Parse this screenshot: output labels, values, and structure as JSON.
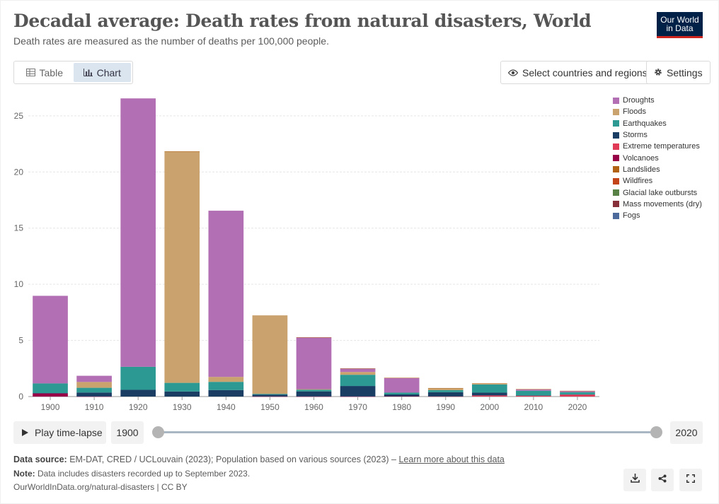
{
  "header": {
    "title": "Decadal average: Death rates from natural disasters, World",
    "subtitle": "Death rates are measured as the number of deaths per 100,000 people.",
    "logo_line1": "Our World",
    "logo_line2": "in Data"
  },
  "tabs": [
    {
      "label": "Table",
      "icon": "table-icon",
      "active": false
    },
    {
      "label": "Chart",
      "icon": "chart-icon",
      "active": true
    }
  ],
  "controls": {
    "select_label": "Select countries and regions",
    "settings_label": "Settings"
  },
  "timeline": {
    "play_label": "Play time-lapse",
    "start_year": "1900",
    "end_year": "2020"
  },
  "footer": {
    "source_prefix": "Data source:",
    "source_text": " EM-DAT, CRED / UCLouvain (2023); Population based on various sources (2023) – ",
    "learn_more": "Learn more about this data",
    "note_prefix": "Note:",
    "note_text": " Data includes disasters recorded up to September 2023.",
    "url_text": "OurWorldInData.org/natural-disasters | CC BY"
  },
  "chart_data": {
    "type": "bar",
    "stacked": true,
    "title": "Decadal average: Death rates from natural disasters, World",
    "xlabel": "",
    "ylabel": "",
    "ylim": [
      0,
      26.5
    ],
    "yticks": [
      0,
      5,
      10,
      15,
      20,
      25
    ],
    "grid": true,
    "legend_position": "right",
    "categories": [
      "1900",
      "1910",
      "1920",
      "1930",
      "1940",
      "1950",
      "1960",
      "1970",
      "1980",
      "1990",
      "2000",
      "2010",
      "2020"
    ],
    "series": [
      {
        "name": "Volcanoes",
        "color": "#970046",
        "values": [
          0.28,
          0.01,
          0.0,
          0.0,
          0.0,
          0.01,
          0.01,
          0.01,
          0.03,
          0.0,
          0.0,
          0.0,
          0.0
        ]
      },
      {
        "name": "Mass movements (dry)",
        "color": "#883039",
        "values": [
          0.0,
          0.0,
          0.0,
          0.0,
          0.0,
          0.0,
          0.0,
          0.0,
          0.0,
          0.0,
          0.0,
          0.0,
          0.0
        ]
      },
      {
        "name": "Extreme temperatures",
        "color": "#e03a57",
        "values": [
          0.0,
          0.0,
          0.0,
          0.0,
          0.0,
          0.0,
          0.0,
          0.0,
          0.0,
          0.01,
          0.1,
          0.07,
          0.17
        ]
      },
      {
        "name": "Storms",
        "color": "#1a3d63",
        "values": [
          0.03,
          0.35,
          0.6,
          0.45,
          0.58,
          0.17,
          0.45,
          0.93,
          0.16,
          0.38,
          0.25,
          0.03,
          0.03
        ]
      },
      {
        "name": "Earthquakes",
        "color": "#2c9a93",
        "values": [
          0.86,
          0.42,
          2.05,
          0.77,
          0.73,
          0.06,
          0.15,
          1.0,
          0.16,
          0.18,
          0.73,
          0.42,
          0.19
        ]
      },
      {
        "name": "Floods",
        "color": "#c9a26d",
        "values": [
          0.0,
          0.52,
          0.0,
          20.6,
          0.44,
          6.99,
          0.05,
          0.25,
          0.0,
          0.17,
          0.08,
          0.0,
          0.0
        ]
      },
      {
        "name": "Droughts",
        "color": "#b26fb3",
        "values": [
          7.8,
          0.55,
          23.9,
          0.0,
          14.8,
          0.0,
          4.6,
          0.3,
          1.3,
          0.0,
          0.0,
          0.12,
          0.1
        ]
      },
      {
        "name": "Landslides",
        "color": "#b16214",
        "values": [
          0.0,
          0.0,
          0.0,
          0.02,
          0.0,
          0.0,
          0.02,
          0.02,
          0.02,
          0.02,
          0.02,
          0.02,
          0.02
        ]
      },
      {
        "name": "Wildfires",
        "color": "#c4441a",
        "values": [
          0.0,
          0.0,
          0.0,
          0.0,
          0.0,
          0.0,
          0.0,
          0.0,
          0.0,
          0.0,
          0.0,
          0.0,
          0.0
        ]
      },
      {
        "name": "Glacial lake outbursts",
        "color": "#578145",
        "values": [
          0.0,
          0.0,
          0.0,
          0.0,
          0.0,
          0.0,
          0.0,
          0.0,
          0.0,
          0.0,
          0.0,
          0.0,
          0.0
        ]
      },
      {
        "name": "Fogs",
        "color": "#4c6a9c",
        "values": [
          0.0,
          0.0,
          0.0,
          0.0,
          0.0,
          0.0,
          0.0,
          0.0,
          0.0,
          0.0,
          0.0,
          0.0,
          0.0
        ]
      }
    ],
    "legend": [
      {
        "name": "Droughts",
        "color": "#b26fb3"
      },
      {
        "name": "Floods",
        "color": "#c9a26d"
      },
      {
        "name": "Earthquakes",
        "color": "#2c9a93"
      },
      {
        "name": "Storms",
        "color": "#1a3d63"
      },
      {
        "name": "Extreme temperatures",
        "color": "#e03a57"
      },
      {
        "name": "Volcanoes",
        "color": "#970046"
      },
      {
        "name": "Landslides",
        "color": "#b16214"
      },
      {
        "name": "Wildfires",
        "color": "#c4441a"
      },
      {
        "name": "Glacial lake outbursts",
        "color": "#578145"
      },
      {
        "name": "Mass movements (dry)",
        "color": "#883039"
      },
      {
        "name": "Fogs",
        "color": "#4c6a9c"
      }
    ]
  }
}
